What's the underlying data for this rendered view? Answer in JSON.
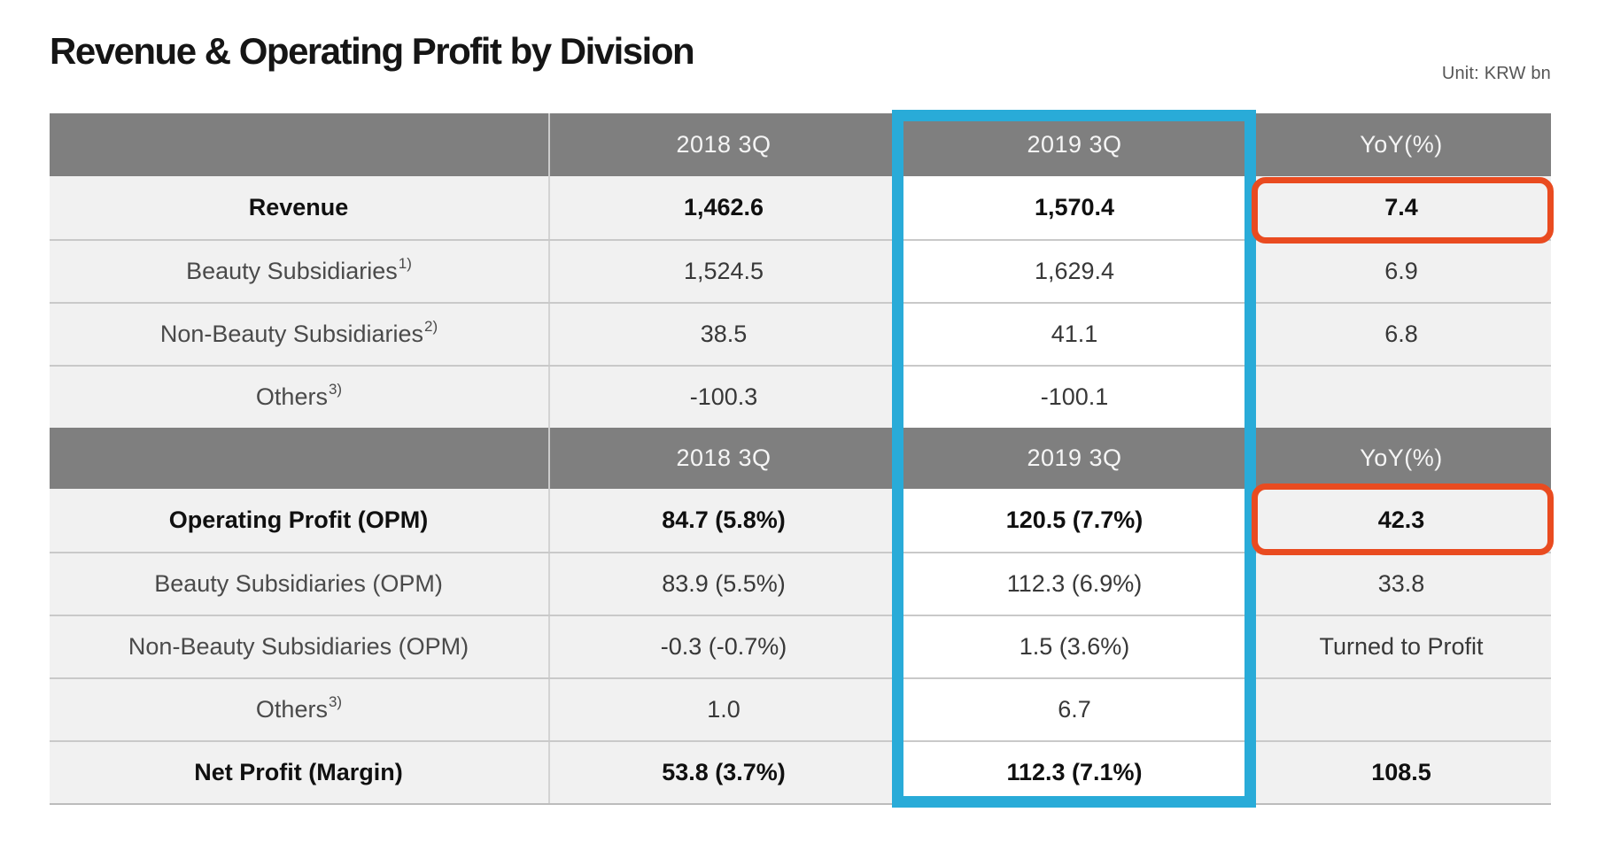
{
  "slide": {
    "title": "Revenue & Operating Profit by Division",
    "unit_label": "Unit: KRW bn"
  },
  "colors": {
    "accent_blue": "#29abd8",
    "accent_red": "#e94b20",
    "header_gray": "#7f7f7f",
    "row_bg": "#f1f1f1",
    "highlight_col_bg": "#ffffff"
  },
  "revenue_table": {
    "header": {
      "period_1": "2018 3Q",
      "period_2": "2019 3Q",
      "yoy": "YoY(%)"
    },
    "rows": [
      {
        "label": "Revenue",
        "sup": "",
        "q3_2018": "1,462.6",
        "q3_2019": "1,570.4",
        "yoy": "7.4"
      },
      {
        "label": "Beauty Subsidiaries",
        "sup": "1)",
        "q3_2018": "1,524.5",
        "q3_2019": "1,629.4",
        "yoy": "6.9"
      },
      {
        "label": "Non-Beauty Subsidiaries",
        "sup": "2)",
        "q3_2018": "38.5",
        "q3_2019": "41.1",
        "yoy": "6.8"
      },
      {
        "label": "Others",
        "sup": "3)",
        "q3_2018": "-100.3",
        "q3_2019": "-100.1",
        "yoy": ""
      }
    ]
  },
  "profit_table": {
    "header": {
      "period_1": "2018 3Q",
      "period_2": "2019 3Q",
      "yoy": "YoY(%)"
    },
    "rows": [
      {
        "label": "Operating Profit (OPM)",
        "sup": "",
        "q3_2018": "84.7 (5.8%)",
        "q3_2019": "120.5 (7.7%)",
        "yoy": "42.3"
      },
      {
        "label": "Beauty Subsidiaries (OPM)",
        "sup": "",
        "q3_2018": "83.9 (5.5%)",
        "q3_2019": "112.3 (6.9%)",
        "yoy": "33.8"
      },
      {
        "label": "Non-Beauty Subsidiaries (OPM)",
        "sup": "",
        "q3_2018": "-0.3 (-0.7%)",
        "q3_2019": "1.5 (3.6%)",
        "yoy": "Turned to Profit"
      },
      {
        "label": "Others",
        "sup": "3)",
        "q3_2018": "1.0",
        "q3_2019": "6.7",
        "yoy": ""
      },
      {
        "label": "Net Profit (Margin)",
        "sup": "",
        "q3_2018": "53.8 (3.7%)",
        "q3_2019": "112.3 (7.1%)",
        "yoy": "108.5"
      }
    ]
  }
}
